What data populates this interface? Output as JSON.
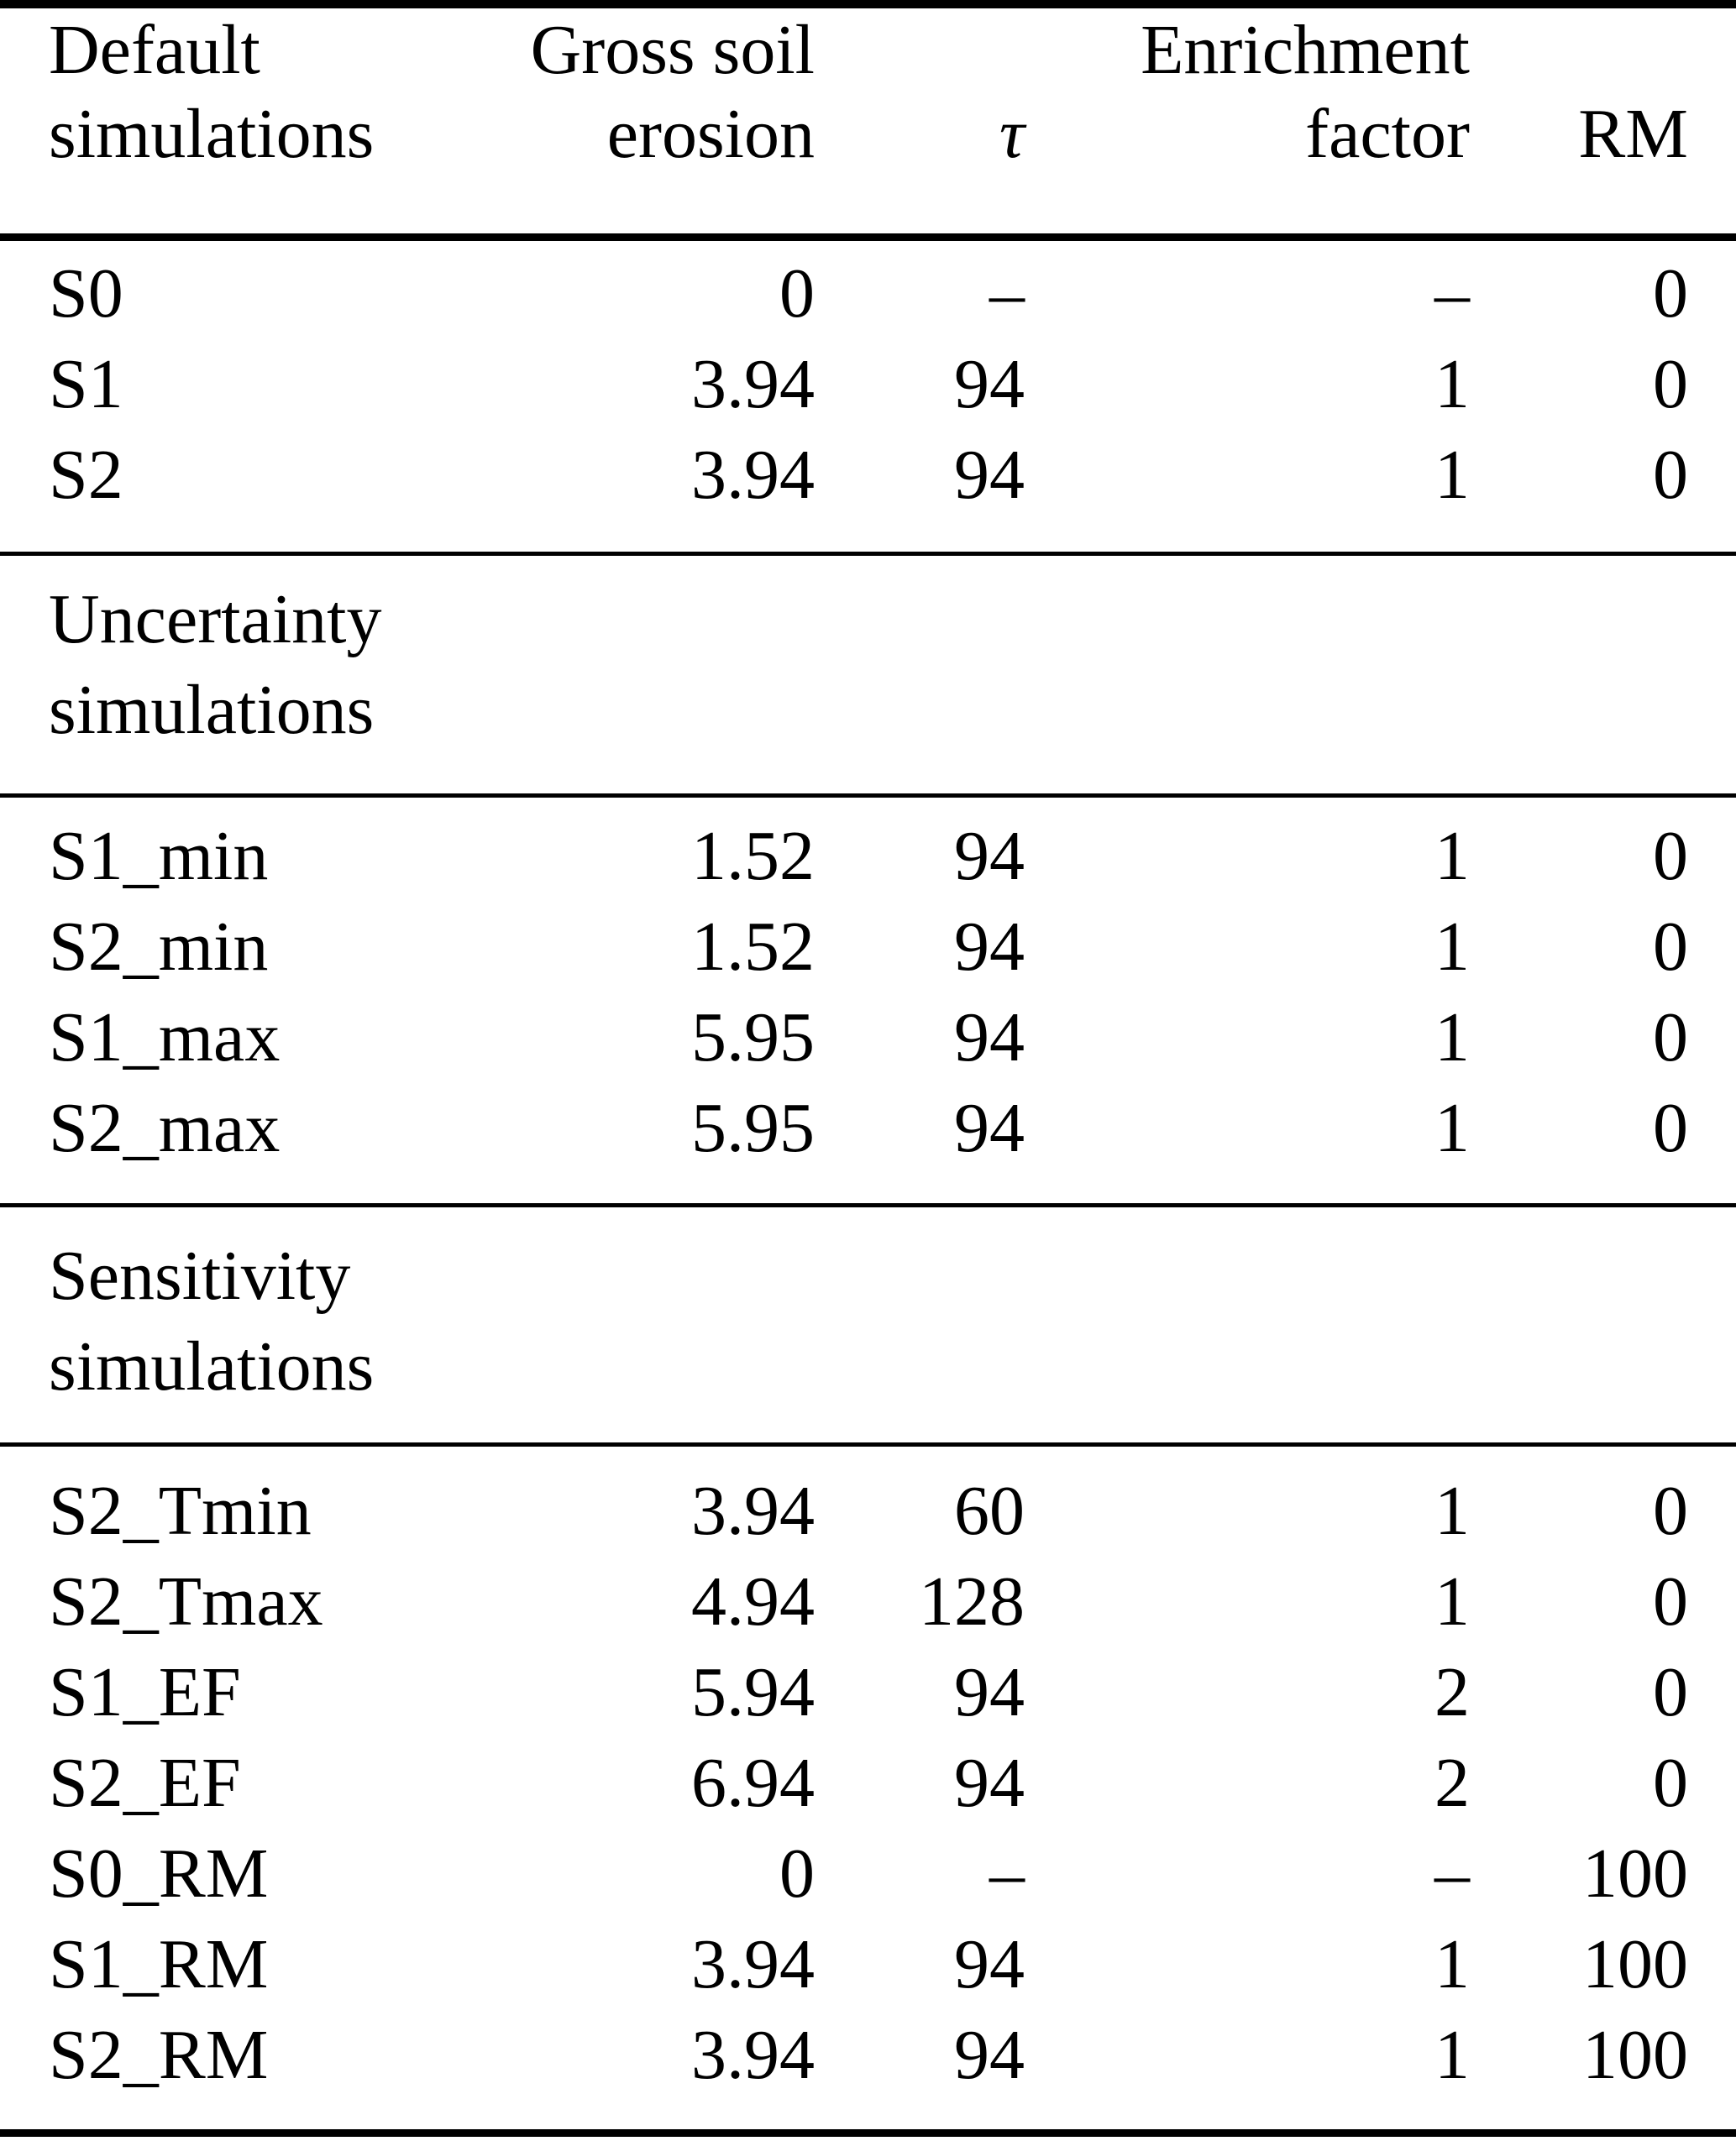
{
  "table": {
    "header": {
      "col1": {
        "line1": "Default",
        "line2": "simulations"
      },
      "col2": {
        "line1": "Gross soil",
        "line2": "erosion"
      },
      "col3": {
        "line1": "",
        "line2": "τ"
      },
      "col4": {
        "line1": "Enrichment",
        "line2": "factor"
      },
      "col5": {
        "line1": "",
        "line2": "RM"
      }
    },
    "sections": [
      {
        "rows": [
          {
            "label": "S0",
            "erosion": "0",
            "tau": "–",
            "ef": "–",
            "rm": "0"
          },
          {
            "label": "S1",
            "erosion": "3.94",
            "tau": "94",
            "ef": "1",
            "rm": "0"
          },
          {
            "label": "S2",
            "erosion": "3.94",
            "tau": "94",
            "ef": "1",
            "rm": "0"
          }
        ]
      },
      {
        "title": {
          "line1": "Uncertainty",
          "line2": "simulations"
        },
        "rows": [
          {
            "label": "S1_min",
            "erosion": "1.52",
            "tau": "94",
            "ef": "1",
            "rm": "0"
          },
          {
            "label": "S2_min",
            "erosion": "1.52",
            "tau": "94",
            "ef": "1",
            "rm": "0"
          },
          {
            "label": "S1_max",
            "erosion": "5.95",
            "tau": "94",
            "ef": "1",
            "rm": "0"
          },
          {
            "label": "S2_max",
            "erosion": "5.95",
            "tau": "94",
            "ef": "1",
            "rm": "0"
          }
        ]
      },
      {
        "title": {
          "line1": "Sensitivity",
          "line2": "simulations"
        },
        "rows": [
          {
            "label": "S2_Tmin",
            "erosion": "3.94",
            "tau": "60",
            "ef": "1",
            "rm": "0"
          },
          {
            "label": "S2_Tmax",
            "erosion": "4.94",
            "tau": "128",
            "ef": "1",
            "rm": "0"
          },
          {
            "label": "S1_EF",
            "erosion": "5.94",
            "tau": "94",
            "ef": "2",
            "rm": "0"
          },
          {
            "label": "S2_EF",
            "erosion": "6.94",
            "tau": "94",
            "ef": "2",
            "rm": "0"
          },
          {
            "label": "S0_RM",
            "erosion": "0",
            "tau": "–",
            "ef": "–",
            "rm": "100"
          },
          {
            "label": "S1_RM",
            "erosion": "3.94",
            "tau": "94",
            "ef": "1",
            "rm": "100"
          },
          {
            "label": "S2_RM",
            "erosion": "3.94",
            "tau": "94",
            "ef": "1",
            "rm": "100"
          }
        ]
      }
    ]
  }
}
